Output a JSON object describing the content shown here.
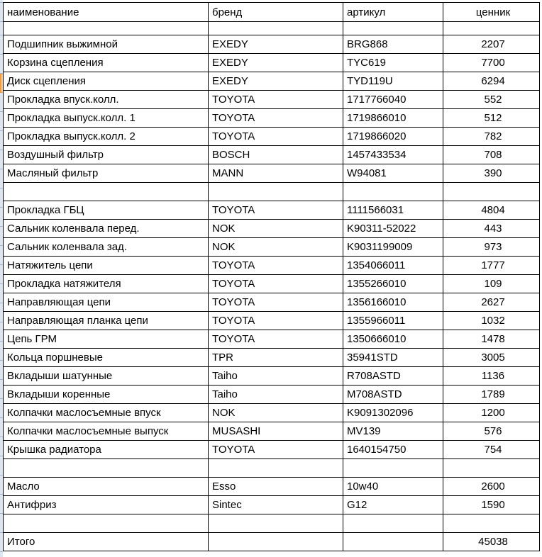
{
  "app": {
    "kind": "spreadsheet-parts-price-list"
  },
  "colors": {
    "grid_border": "#000000",
    "rowhead_bg": "#dce6f1",
    "rowhead_line": "#9db5d3",
    "selection_fill": "#fbcf90",
    "selection_edge": "#f49b3f"
  },
  "table": {
    "columns": [
      {
        "label": "наименование"
      },
      {
        "label": "бренд"
      },
      {
        "label": "артикул"
      },
      {
        "label": "ценник"
      }
    ],
    "selected_row_index": 3,
    "rows": [
      {
        "name": "",
        "brand": "",
        "article": "",
        "price": "",
        "empty": true,
        "short": true
      },
      {
        "name": "Подшипник выжимной",
        "brand": "EXEDY",
        "article": "BRG868",
        "price": "2207"
      },
      {
        "name": "Корзина сцепления",
        "brand": "EXEDY",
        "article": "TYC619",
        "price": "7700"
      },
      {
        "name": "Диск сцепления",
        "brand": "EXEDY",
        "article": "TYD119U",
        "price": "6294"
      },
      {
        "name": "Прокладка впуск.колл.",
        "brand": "TOYOTA",
        "article": "1717766040",
        "price": "552"
      },
      {
        "name": "Прокладка выпуск.колл. 1",
        "brand": "TOYOTA",
        "article": "1719866010",
        "price": "512"
      },
      {
        "name": "Прокладка выпуск.колл. 2",
        "brand": "TOYOTA",
        "article": "1719866020",
        "price": "782"
      },
      {
        "name": "Воздушный фильтр",
        "brand": "BOSCH",
        "article": "1457433534",
        "price": "708"
      },
      {
        "name": "Масляный фильтр",
        "brand": "MANN",
        "article": "W94081",
        "price": "390"
      },
      {
        "name": "",
        "brand": "",
        "article": "",
        "price": "",
        "empty": true
      },
      {
        "name": "Прокладка ГБЦ",
        "brand": "TOYOTA",
        "article": "1111566031",
        "price": "4804"
      },
      {
        "name": "Сальник коленвала перед.",
        "brand": "NOK",
        "article": "K90311-52022",
        "price": "443"
      },
      {
        "name": "Сальник коленвала зад.",
        "brand": "NOK",
        "article": "K9031199009",
        "price": "973"
      },
      {
        "name": "Натяжитель цепи",
        "brand": "TOYOTA",
        "article": "1354066011",
        "price": "1777"
      },
      {
        "name": "Прокладка натяжителя",
        "brand": "TOYOTA",
        "article": "1355266010",
        "price": "109"
      },
      {
        "name": "Направляющая цепи",
        "brand": "TOYOTA",
        "article": "1356166010",
        "price": "2627"
      },
      {
        "name": "Направляющая планка цепи",
        "brand": "TOYOTA",
        "article": "1355966011",
        "price": "1032"
      },
      {
        "name": "Цепь ГРМ",
        "brand": "TOYOTA",
        "article": "1350666010",
        "price": "1478"
      },
      {
        "name": "Кольца поршневые",
        "brand": "TPR",
        "article": "35941STD",
        "price": "3005"
      },
      {
        "name": "Вкладыши шатунные",
        "brand": "Taiho",
        "article": "R708ASTD",
        "price": "1136"
      },
      {
        "name": "Вкладыши коренные",
        "brand": "Taiho",
        "article": "M708ASTD",
        "price": "1789"
      },
      {
        "name": "Колпачки маслосъемные впуск",
        "brand": "NOK",
        "article": "K9091302096",
        "price": "1200"
      },
      {
        "name": "Колпачки маслосъемные выпуск",
        "brand": "MUSASHI",
        "article": "MV139",
        "price": "576"
      },
      {
        "name": "Крышка радиатора",
        "brand": "TOYOTA",
        "article": "1640154750",
        "price": "754"
      },
      {
        "name": "",
        "brand": "",
        "article": "",
        "price": "",
        "empty": true
      },
      {
        "name": "Масло",
        "brand": "Esso",
        "article": "10w40",
        "price": "2600"
      },
      {
        "name": "Антифриз",
        "brand": "Sintec",
        "article": "G12",
        "price": "1590"
      },
      {
        "name": "",
        "brand": "",
        "article": "",
        "price": "",
        "empty": true
      },
      {
        "name": "Итого",
        "brand": "",
        "article": "",
        "price": "45038"
      }
    ]
  }
}
